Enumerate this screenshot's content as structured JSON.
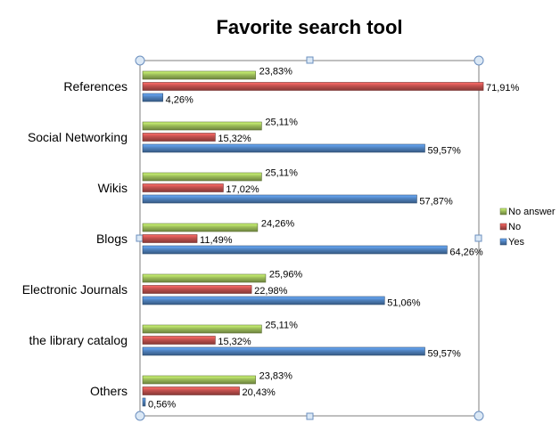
{
  "chart_data": {
    "type": "bar",
    "orientation": "horizontal",
    "title": "Favorite search tool",
    "categories": [
      "References",
      "Social Networking",
      "Wikis",
      "Blogs",
      "Electronic Journals",
      "the library catalog",
      "Others"
    ],
    "series": [
      {
        "name": "No answer",
        "color": "#9BBB59",
        "values": [
          23.83,
          25.11,
          25.11,
          24.26,
          25.96,
          25.11,
          23.83
        ],
        "labels": [
          "23,83%",
          "25,11%",
          "25,11%",
          "24,26%",
          "25,96%",
          "25,11%",
          "23,83%"
        ]
      },
      {
        "name": "No",
        "color": "#C0504D",
        "values": [
          71.91,
          15.32,
          17.02,
          11.49,
          22.98,
          15.32,
          20.43
        ],
        "labels": [
          "71,91%",
          "15,32%",
          "17,02%",
          "11,49%",
          "22,98%",
          "15,32%",
          "20,43%"
        ]
      },
      {
        "name": "Yes",
        "color": "#4F81BD",
        "values": [
          4.26,
          59.57,
          57.87,
          64.26,
          51.06,
          59.57,
          0.56
        ],
        "labels": [
          "4,26%",
          "59,57%",
          "57,87%",
          "64,26%",
          "51,06%",
          "59,57%",
          "0,56%"
        ]
      }
    ],
    "xlim": [
      0,
      80
    ],
    "grid": false,
    "legend": "right"
  }
}
